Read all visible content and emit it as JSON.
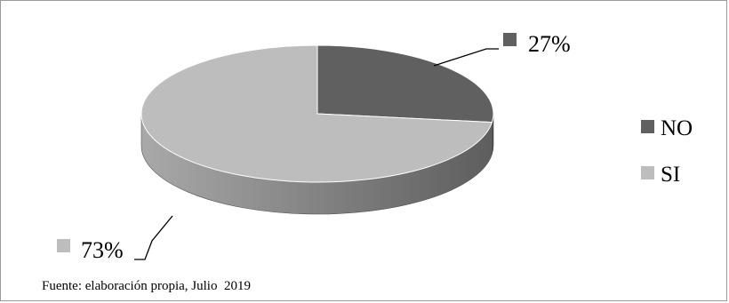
{
  "chart_data": {
    "type": "pie",
    "style": "3d",
    "slices": [
      {
        "name": "NO",
        "value": 27,
        "label": "27%",
        "color": "#606060"
      },
      {
        "name": "SI",
        "value": 73,
        "label": "73%",
        "color": "#bdbdbd"
      }
    ],
    "legend": {
      "position": "right",
      "entries": [
        "NO",
        "SI"
      ]
    }
  },
  "source_note": "Fuente: elaboración propia, Julio  2019"
}
